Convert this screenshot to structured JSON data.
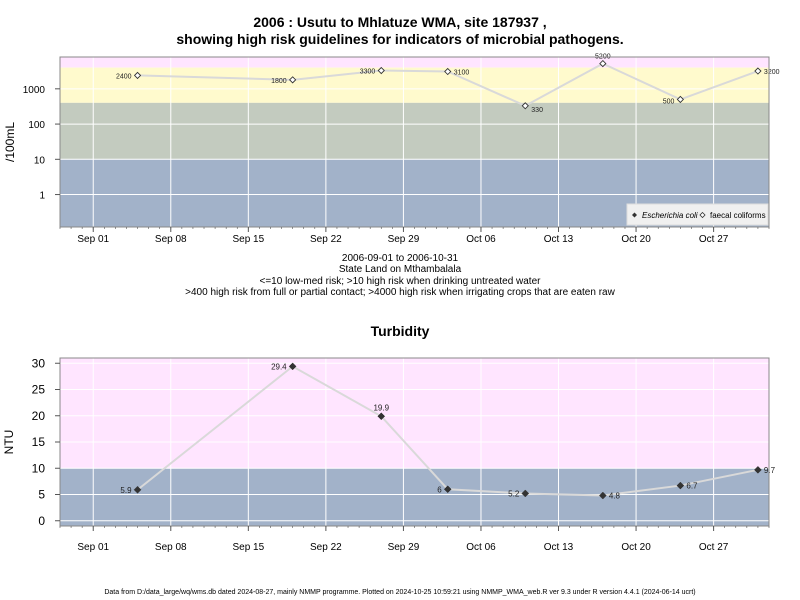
{
  "chart1": {
    "title_line1": "2006 : Usutu to Mhlatuze WMA, site 187937 ,",
    "title_line2": "showing high risk guidelines for indicators of microbial pathogens.",
    "ylabel": "/100mL",
    "yticks": [
      "1",
      "10",
      "100",
      "1000"
    ],
    "xticks": [
      "Sep 01",
      "Sep 08",
      "Sep 15",
      "Sep 22",
      "Sep 29",
      "Oct 06",
      "Oct 13",
      "Oct 20",
      "Oct 27"
    ],
    "legend": {
      "ecoli": "Escherichia coli",
      "faecal": "faecal coliforms"
    },
    "caption": {
      "line1": "2006-09-01 to 2006-10-31",
      "line2": "State Land on Mthambalala",
      "line3": "<=10 low-med risk; >10 high risk when drinking untreated water",
      "line4": ">400 high risk from full or partial contact; >4000 high risk when irrigating crops that are eaten raw"
    },
    "colors": {
      "band_low": "#a2b2c9",
      "band_mid": "#c3cbbf",
      "band_high": "#fffacd",
      "band_top": "#ffe5ff",
      "line": "#d9d9d9"
    }
  },
  "chart2": {
    "title": "Turbidity",
    "ylabel": "NTU",
    "yticks": [
      "0",
      "5",
      "10",
      "15",
      "20",
      "25",
      "30"
    ],
    "xticks": [
      "Sep 01",
      "Sep 08",
      "Sep 15",
      "Sep 22",
      "Sep 29",
      "Oct 06",
      "Oct 13",
      "Oct 20",
      "Oct 27"
    ],
    "colors": {
      "band_low": "#a2b2c9",
      "band_high": "#ffe5ff",
      "line": "#d9d9d9"
    }
  },
  "footer": "Data from D:/data_large/wq/wms.db dated 2024-08-27, mainly NMMP programme. Plotted on 2024-10-25 10:59:21 using NMMP_WMA_web.R ver 9.3 under R version 4.4.1 (2024-06-14 ucrt)",
  "chart_data": [
    {
      "type": "line",
      "title": "2006 : Usutu to Mhlatuze WMA, site 187937 , showing high risk guidelines for indicators of microbial pathogens.",
      "ylabel": "/100mL",
      "yscale": "log",
      "ylim": [
        0.12,
        8000
      ],
      "xlim": [
        "2006-08-29",
        "2006-11-01"
      ],
      "bands": [
        10,
        400,
        4000
      ],
      "series": [
        {
          "name": "faecal coliforms",
          "x": [
            "2006-09-05",
            "2006-09-19",
            "2006-09-27",
            "2006-10-03",
            "2006-10-10",
            "2006-10-17",
            "2006-10-24",
            "2006-10-31"
          ],
          "values": [
            2400,
            1800,
            3300,
            3100,
            330,
            5200,
            500,
            3200
          ]
        }
      ],
      "legend_position": "bottom-right"
    },
    {
      "type": "line",
      "title": "Turbidity",
      "ylabel": "NTU",
      "ylim": [
        -1,
        31
      ],
      "xlim": [
        "2006-08-29",
        "2006-11-01"
      ],
      "bands": [
        10
      ],
      "series": [
        {
          "x": [
            "2006-09-05",
            "2006-09-19",
            "2006-09-27",
            "2006-10-03",
            "2006-10-10",
            "2006-10-17",
            "2006-10-24",
            "2006-10-31"
          ],
          "values": [
            5.9,
            29.4,
            19.9,
            6,
            5.2,
            4.8,
            6.7,
            9.7
          ]
        }
      ]
    }
  ]
}
